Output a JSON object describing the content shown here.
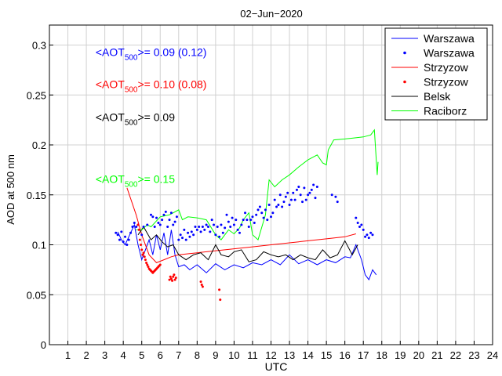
{
  "chart_data": {
    "type": "line",
    "title": "02−Jun−2020",
    "xlabel": "UTC",
    "ylabel": "AOD at 500 nm",
    "xlim": [
      0,
      24
    ],
    "ylim": [
      0,
      0.32
    ],
    "xticks": [
      1,
      2,
      3,
      4,
      5,
      6,
      7,
      8,
      9,
      10,
      11,
      12,
      13,
      14,
      15,
      16,
      17,
      18,
      19,
      20,
      21,
      22,
      23,
      24
    ],
    "yticks": [
      0,
      0.05,
      0.1,
      0.15,
      0.2,
      0.25,
      0.3
    ],
    "ytick_labels": [
      "0",
      "0.05",
      "0.1",
      "0.15",
      "0.2",
      "0.25",
      "0.3"
    ],
    "grid": true,
    "legend_position": "top-right",
    "legend": [
      {
        "label": "Warszawa",
        "style": "line",
        "color": "#0000ff"
      },
      {
        "label": "Warszawa",
        "style": "points",
        "color": "#0000ff"
      },
      {
        "label": "Strzyzow",
        "style": "line",
        "color": "#ff0000"
      },
      {
        "label": "Strzyzow",
        "style": "points",
        "color": "#ff0000"
      },
      {
        "label": "Belsk",
        "style": "line",
        "color": "#000000"
      },
      {
        "label": "Raciborz",
        "style": "line",
        "color": "#00ff00"
      }
    ],
    "annotations": [
      {
        "prefix": "<AOT",
        "sub": "500",
        "suffix": ">= 0.09 (0.12)",
        "color": "#0000ff",
        "x": 2.5,
        "y": 0.289
      },
      {
        "prefix": "<AOT",
        "sub": "500",
        "suffix": ">= 0.10 (0.08)",
        "color": "#ff0000",
        "x": 2.5,
        "y": 0.257
      },
      {
        "prefix": "<AOT",
        "sub": "500",
        "suffix": ">= 0.09",
        "color": "#000000",
        "x": 2.5,
        "y": 0.224
      },
      {
        "prefix": "<AOT",
        "sub": "500",
        "suffix": ">= 0.15",
        "color": "#00ff00",
        "x": 2.5,
        "y": 0.162
      }
    ],
    "series": [
      {
        "label": "Warszawa",
        "style": "line",
        "color": "#0000ff",
        "x": [
          3.7,
          3.9,
          4.1,
          4.3,
          4.6,
          4.8,
          5.0,
          5.2,
          5.4,
          5.6,
          5.8,
          6.0,
          6.2,
          6.4,
          6.6,
          6.8,
          7.0,
          7.3,
          7.6,
          8.0,
          8.5,
          9.0,
          9.5,
          10.0,
          10.5,
          11.0,
          11.5,
          12.0,
          12.5,
          13.0,
          13.5,
          14.0,
          14.5,
          15.0,
          15.5,
          16.0,
          16.3,
          16.6,
          16.9,
          17.1,
          17.3,
          17.5,
          17.7
        ],
        "y": [
          0.113,
          0.105,
          0.1,
          0.108,
          0.12,
          0.1,
          0.085,
          0.095,
          0.105,
          0.09,
          0.11,
          0.095,
          0.112,
          0.09,
          0.115,
          0.09,
          0.078,
          0.08,
          0.075,
          0.08,
          0.072,
          0.081,
          0.075,
          0.08,
          0.077,
          0.082,
          0.08,
          0.085,
          0.08,
          0.09,
          0.081,
          0.085,
          0.08,
          0.085,
          0.082,
          0.088,
          0.087,
          0.1,
          0.085,
          0.07,
          0.065,
          0.075,
          0.07
        ]
      },
      {
        "label": "Strzyzow",
        "style": "line",
        "color": "#ff0000",
        "x": [
          4.2,
          4.7,
          5.0,
          5.4,
          5.8,
          6.2,
          6.6,
          7.0,
          8.0,
          9.0,
          10.0,
          11.0,
          12.0,
          13.0,
          14.0,
          15.0,
          16.0,
          16.6
        ],
        "y": [
          0.157,
          0.13,
          0.11,
          0.09,
          0.082,
          0.085,
          0.088,
          0.09,
          0.092,
          0.094,
          0.096,
          0.098,
          0.1,
          0.102,
          0.104,
          0.106,
          0.108,
          0.111
        ]
      },
      {
        "label": "Belsk",
        "style": "line",
        "color": "#000000",
        "x": [
          4.8,
          5.1,
          5.5,
          5.8,
          6.1,
          6.4,
          6.7,
          7.0,
          7.4,
          7.8,
          8.2,
          8.6,
          9.0,
          9.3,
          9.7,
          10.0,
          10.4,
          10.8,
          11.2,
          11.6,
          12.0,
          12.4,
          12.8,
          13.2,
          13.6,
          14.0,
          14.4,
          14.8,
          15.2,
          15.6,
          16.0,
          16.4,
          16.7
        ],
        "y": [
          0.11,
          0.118,
          0.105,
          0.11,
          0.103,
          0.098,
          0.1,
          0.09,
          0.085,
          0.09,
          0.092,
          0.085,
          0.1,
          0.09,
          0.088,
          0.093,
          0.095,
          0.083,
          0.085,
          0.093,
          0.09,
          0.088,
          0.09,
          0.085,
          0.09,
          0.087,
          0.085,
          0.095,
          0.087,
          0.09,
          0.104,
          0.09,
          0.1
        ]
      },
      {
        "label": "Raciborz",
        "style": "line",
        "color": "#00ff00",
        "x": [
          4.7,
          5.0,
          5.3,
          5.5,
          6.0,
          6.5,
          7.0,
          7.2,
          7.5,
          8.0,
          8.5,
          9.0,
          9.3,
          9.7,
          10.0,
          10.3,
          10.5,
          10.8,
          11.0,
          11.3,
          11.7,
          11.9,
          12.2,
          12.6,
          13.0,
          13.5,
          14.0,
          14.5,
          14.8,
          15.0,
          15.1,
          15.4,
          16.0,
          16.5,
          17.0,
          17.4,
          17.6,
          17.75,
          17.8
        ],
        "y": [
          0.115,
          0.115,
          0.12,
          0.118,
          0.128,
          0.13,
          0.135,
          0.125,
          0.128,
          0.127,
          0.125,
          0.11,
          0.105,
          0.115,
          0.111,
          0.117,
          0.125,
          0.132,
          0.11,
          0.105,
          0.13,
          0.165,
          0.158,
          0.165,
          0.17,
          0.178,
          0.185,
          0.19,
          0.182,
          0.18,
          0.195,
          0.205,
          0.206,
          0.207,
          0.208,
          0.21,
          0.215,
          0.17,
          0.183
        ]
      },
      {
        "label": "Warszawa",
        "style": "points",
        "color": "#0000ff",
        "x": [
          3.6,
          3.7,
          3.8,
          3.9,
          4.0,
          4.1,
          4.2,
          4.3,
          4.4,
          4.5,
          4.6,
          4.7,
          4.8,
          5.0,
          5.1,
          5.3,
          5.5,
          5.6,
          5.7,
          5.8,
          5.9,
          6.0,
          6.1,
          6.2,
          6.3,
          6.4,
          6.5,
          6.6,
          6.7,
          6.8,
          6.9,
          7.0,
          7.1,
          7.2,
          7.3,
          7.4,
          7.5,
          7.6,
          7.7,
          7.8,
          7.9,
          8.0,
          8.1,
          8.2,
          8.3,
          8.4,
          8.5,
          8.6,
          8.7,
          8.8,
          8.9,
          9.0,
          9.1,
          9.2,
          9.3,
          9.4,
          9.5,
          9.6,
          9.7,
          9.8,
          9.9,
          10.0,
          10.1,
          10.2,
          10.3,
          10.4,
          10.5,
          10.6,
          10.7,
          10.8,
          10.9,
          11.0,
          11.1,
          11.2,
          11.3,
          11.4,
          11.5,
          11.6,
          11.7,
          11.8,
          11.9,
          12.0,
          12.1,
          12.2,
          12.3,
          12.4,
          12.5,
          12.6,
          12.7,
          12.8,
          12.9,
          13.0,
          13.1,
          13.2,
          13.3,
          13.4,
          13.5,
          13.6,
          13.7,
          13.8,
          13.9,
          14.0,
          14.1,
          14.2,
          14.3,
          14.4,
          14.5,
          15.3,
          15.5,
          15.6,
          16.6,
          16.7,
          16.8,
          16.9,
          17.0,
          17.1,
          17.2,
          17.3,
          17.4,
          17.5
        ],
        "y": [
          0.112,
          0.11,
          0.105,
          0.113,
          0.103,
          0.108,
          0.1,
          0.105,
          0.112,
          0.118,
          0.122,
          0.118,
          0.12,
          0.11,
          0.118,
          0.12,
          0.13,
          0.128,
          0.118,
          0.127,
          0.122,
          0.12,
          0.125,
          0.13,
          0.133,
          0.118,
          0.125,
          0.132,
          0.12,
          0.123,
          0.128,
          0.105,
          0.11,
          0.107,
          0.115,
          0.105,
          0.112,
          0.108,
          0.113,
          0.11,
          0.118,
          0.115,
          0.118,
          0.113,
          0.118,
          0.115,
          0.12,
          0.118,
          0.113,
          0.125,
          0.12,
          0.11,
          0.118,
          0.108,
          0.12,
          0.112,
          0.117,
          0.13,
          0.123,
          0.118,
          0.127,
          0.12,
          0.125,
          0.115,
          0.112,
          0.12,
          0.125,
          0.132,
          0.125,
          0.118,
          0.125,
          0.128,
          0.122,
          0.13,
          0.135,
          0.138,
          0.132,
          0.127,
          0.135,
          0.125,
          0.14,
          0.128,
          0.132,
          0.145,
          0.138,
          0.14,
          0.15,
          0.138,
          0.143,
          0.148,
          0.152,
          0.14,
          0.145,
          0.152,
          0.145,
          0.155,
          0.158,
          0.15,
          0.143,
          0.157,
          0.145,
          0.15,
          0.152,
          0.155,
          0.16,
          0.147,
          0.158,
          0.15,
          0.148,
          0.143,
          0.127,
          0.122,
          0.118,
          0.12,
          0.115,
          0.108,
          0.11,
          0.107,
          0.112,
          0.11
        ]
      },
      {
        "label": "Strzyzow",
        "style": "points",
        "color": "#ff0000",
        "x": [
          4.8,
          4.85,
          4.9,
          4.95,
          5.0,
          5.05,
          5.1,
          5.15,
          5.2,
          5.25,
          5.3,
          5.35,
          5.4,
          5.45,
          5.5,
          5.55,
          5.6,
          5.65,
          5.7,
          5.75,
          5.8,
          5.85,
          5.9,
          5.95,
          6.0,
          6.5,
          6.55,
          6.6,
          6.65,
          6.7,
          6.75,
          6.8,
          6.85,
          8.2,
          8.25,
          8.3,
          9.2,
          9.25
        ],
        "y": [
          0.12,
          0.115,
          0.105,
          0.1,
          0.095,
          0.09,
          0.092,
          0.088,
          0.085,
          0.082,
          0.08,
          0.078,
          0.076,
          0.075,
          0.074,
          0.073,
          0.072,
          0.073,
          0.074,
          0.075,
          0.076,
          0.077,
          0.078,
          0.079,
          0.08,
          0.065,
          0.068,
          0.066,
          0.064,
          0.068,
          0.07,
          0.065,
          0.067,
          0.063,
          0.06,
          0.058,
          0.055,
          0.045
        ]
      }
    ]
  }
}
